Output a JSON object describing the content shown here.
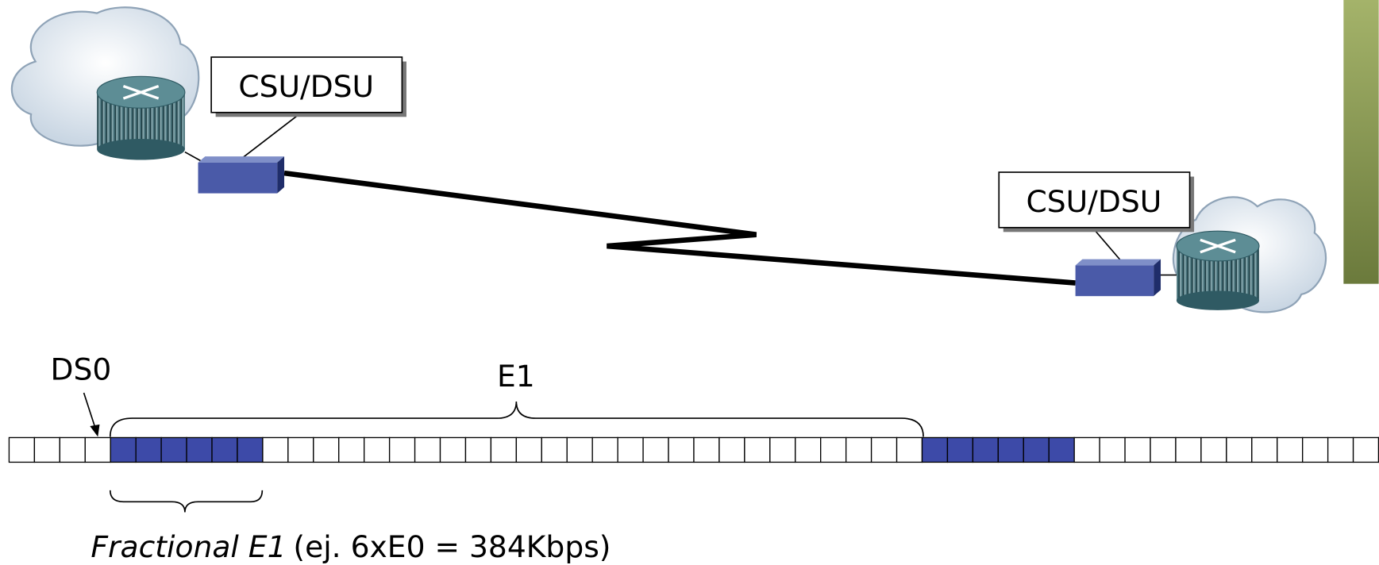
{
  "diagram": {
    "left_device": {
      "label": "CSU/DSU"
    },
    "right_device": {
      "label": "CSU/DSU"
    },
    "ds0_label": "DS0",
    "e1_label": "E1",
    "fractional": {
      "italic": "Fractional E1",
      "note": "(ej. 6xE0 = 384Kbps)"
    }
  }
}
